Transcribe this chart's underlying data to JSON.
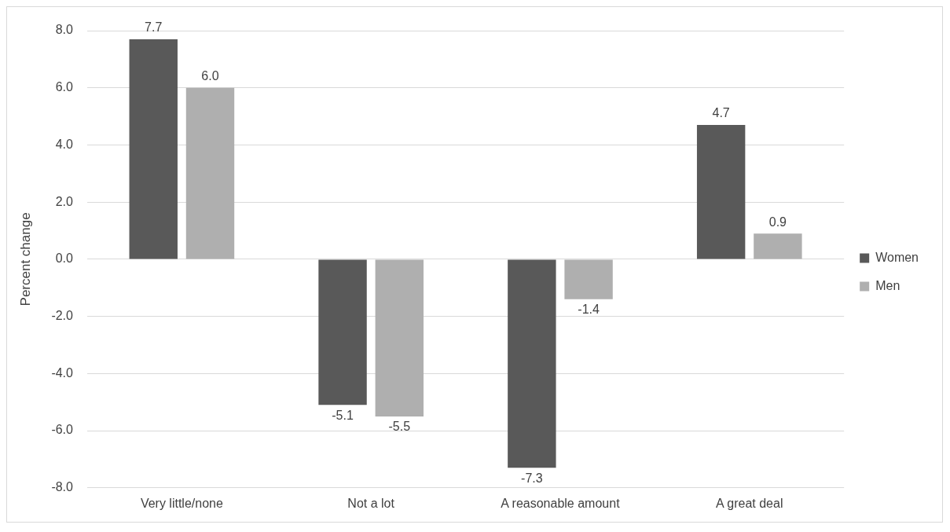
{
  "chart_data": {
    "type": "bar",
    "ylabel": "Percent change",
    "categories": [
      "Very little/none",
      "Not a lot",
      "A reasonable amount",
      "A great deal"
    ],
    "series": [
      {
        "name": "Women",
        "color": "#595959",
        "values": [
          7.7,
          -5.1,
          -7.3,
          4.7
        ],
        "value_labels": [
          "7.7",
          "-5.1",
          "-7.3",
          "4.7"
        ]
      },
      {
        "name": "Men",
        "color": "#afafaf",
        "values": [
          6.0,
          -5.5,
          -1.4,
          0.9
        ],
        "value_labels": [
          "6.0",
          "-5.5",
          "-1.4",
          "0.9"
        ]
      }
    ],
    "ylim": [
      -8,
      8
    ],
    "yticks": [
      {
        "value": -8,
        "label": "-8.0"
      },
      {
        "value": -6,
        "label": "-6.0"
      },
      {
        "value": -4,
        "label": "-4.0"
      },
      {
        "value": -2,
        "label": "-2.0"
      },
      {
        "value": 0,
        "label": "0.0"
      },
      {
        "value": 2,
        "label": "2.0"
      },
      {
        "value": 4,
        "label": "4.0"
      },
      {
        "value": 6,
        "label": "6.0"
      },
      {
        "value": 8,
        "label": "8.0"
      }
    ],
    "grid": "y",
    "legend": "right"
  }
}
